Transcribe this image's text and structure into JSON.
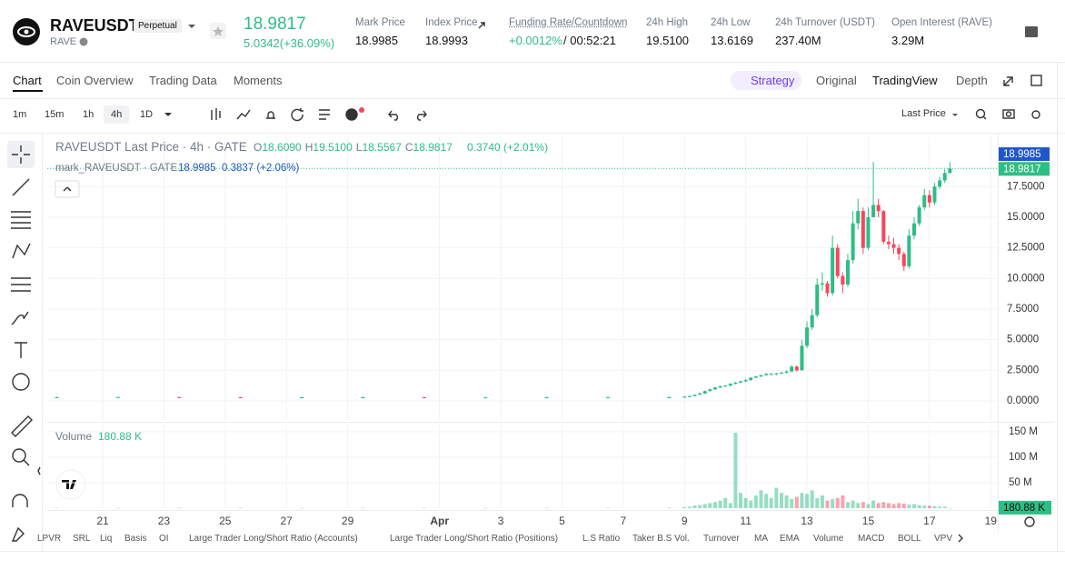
{
  "header": {
    "symbol": "RAVEUSDT",
    "badge": "Perpetual",
    "base": "RAVE",
    "price": "18.9817",
    "change": "5.0342(+36.09%)",
    "stats": [
      {
        "label": "Mark Price",
        "value": "18.9985"
      },
      {
        "label": "Index Price",
        "value": "18.9993"
      },
      {
        "label": "Funding Rate/Countdown",
        "value": "+0.0012%",
        "value2": " / 00:52:21"
      },
      {
        "label": "24h High",
        "value": "19.5100"
      },
      {
        "label": "24h Low",
        "value": "13.6169"
      },
      {
        "label": "24h Turnover (USDT)",
        "value": "237.40M"
      },
      {
        "label": "Open Interest (RAVE)",
        "value": "3.29M"
      }
    ]
  },
  "tabs": [
    "Chart",
    "Coin Overview",
    "Trading Data",
    "Moments"
  ],
  "views": [
    "Strategy",
    "Original",
    "TradingView",
    "Depth"
  ],
  "intervals": [
    "1m",
    "15m",
    "1h",
    "4h",
    "1D"
  ],
  "price_type": "Last Price",
  "indicators": [
    "LPVR",
    "SRL",
    "Liq",
    "Basis",
    "OI",
    "Large Trader Long/Short Ratio (Accounts)",
    "Large Trader Long/Short Ratio (Positions)",
    "L.S Ratio",
    "Taker B.S Vol.",
    "Turnover",
    "MA",
    "EMA",
    "Volume",
    "MACD",
    "BOLL",
    "VPV"
  ],
  "chart_data": {
    "type": "candlestick",
    "legend": {
      "title": "RAVEUSDT Last Price · 4h · GATE",
      "ohlc": [
        "O",
        "18.6090",
        "H",
        "19.5100",
        "L",
        "18.5567",
        "C",
        "18.9817"
      ],
      "change": "0.3740 (+2.01%)",
      "mark_title": "mark_RAVEUSDT · GATE",
      "mark_value": "18.9985",
      "mark_change": "0.3837 (+2.06%)",
      "volume_title": "Volume"
    },
    "x": [
      19.5,
      21.5,
      23.5,
      25.5,
      27.5,
      29.5,
      31.5,
      33.5,
      35.5,
      37.5,
      39.5,
      40,
      40.167,
      40.333,
      40.5,
      40.667,
      40.833,
      41,
      41.167,
      41.333,
      41.5,
      41.667,
      41.833,
      42,
      42.167,
      42.333,
      42.5,
      42.667,
      42.833,
      43,
      43.167,
      43.333,
      43.5,
      43.667,
      43.833,
      44,
      44.167,
      44.333,
      44.5,
      44.667,
      44.833,
      45,
      45.167,
      45.333,
      45.5,
      45.667,
      45.833,
      46,
      46.167,
      46.333,
      46.5,
      46.667,
      46.833,
      47,
      47.167,
      47.333,
      47.5,
      47.667,
      47.833,
      48,
      48.167,
      48.333,
      48.5,
      48.667
    ],
    "open": [
      0.3,
      0.3,
      0.31,
      0.3,
      0.29,
      0.3,
      0.3,
      0.28,
      0.29,
      0.3,
      0.3,
      0.3,
      0.35,
      0.4,
      0.5,
      0.6,
      0.8,
      0.95,
      1.1,
      1.2,
      1.25,
      1.4,
      1.5,
      1.6,
      1.7,
      1.9,
      2.0,
      2.1,
      2.2,
      2.2,
      2.25,
      2.3,
      2.4,
      2.8,
      2.5,
      4.5,
      6.0,
      7.0,
      9.5,
      9.6,
      8.8,
      12.5,
      10.2,
      9.5,
      11.5,
      14.5,
      15.5,
      12.5,
      15.0,
      16.0,
      15.5,
      13.0,
      12.8,
      12.5,
      12.0,
      11.0,
      13.5,
      14.5,
      15.8,
      16.8,
      16.2,
      17.5,
      18.0,
      18.609
    ],
    "high": [
      0.35,
      0.36,
      0.35,
      0.34,
      0.34,
      0.35,
      0.34,
      0.33,
      0.34,
      0.35,
      0.36,
      0.4,
      0.45,
      0.55,
      0.7,
      0.85,
      1.0,
      1.15,
      1.25,
      1.3,
      1.45,
      1.55,
      1.65,
      1.8,
      1.95,
      2.05,
      2.15,
      2.3,
      2.3,
      2.3,
      2.4,
      2.5,
      2.9,
      2.9,
      5.0,
      6.5,
      7.5,
      10.0,
      10.5,
      9.8,
      13.5,
      12.8,
      10.5,
      12.0,
      15.5,
      16.5,
      15.8,
      15.8,
      19.5,
      16.5,
      15.6,
      13.5,
      13.3,
      12.8,
      12.2,
      14.0,
      15.0,
      16.0,
      17.3,
      17.2,
      17.8,
      18.3,
      18.9,
      19.51
    ],
    "low": [
      0.26,
      0.25,
      0.26,
      0.25,
      0.24,
      0.25,
      0.26,
      0.24,
      0.25,
      0.26,
      0.27,
      0.25,
      0.3,
      0.38,
      0.48,
      0.58,
      0.78,
      0.9,
      1.05,
      1.15,
      1.2,
      1.35,
      1.45,
      1.55,
      1.65,
      1.85,
      1.95,
      2.05,
      2.1,
      2.1,
      2.2,
      2.25,
      2.35,
      2.4,
      2.5,
      4.3,
      5.8,
      6.8,
      9.0,
      8.5,
      8.6,
      10.0,
      8.8,
      9.3,
      11.2,
      14.0,
      12.0,
      12.3,
      15.0,
      15.0,
      12.8,
      12.4,
      12.0,
      11.5,
      10.6,
      10.8,
      13.2,
      14.3,
      15.6,
      15.8,
      16.0,
      17.3,
      17.8,
      18.5567
    ],
    "close": [
      0.3,
      0.31,
      0.3,
      0.29,
      0.3,
      0.3,
      0.28,
      0.29,
      0.3,
      0.3,
      0.3,
      0.35,
      0.4,
      0.5,
      0.6,
      0.8,
      0.95,
      1.1,
      1.2,
      1.25,
      1.4,
      1.5,
      1.6,
      1.7,
      1.9,
      2.0,
      2.1,
      2.2,
      2.2,
      2.25,
      2.3,
      2.4,
      2.8,
      2.5,
      4.5,
      6.0,
      7.0,
      9.5,
      9.6,
      8.8,
      12.5,
      10.2,
      9.5,
      11.5,
      14.5,
      15.5,
      12.5,
      15.0,
      16.0,
      15.5,
      13.0,
      12.8,
      12.5,
      12.0,
      11.0,
      13.5,
      14.5,
      15.8,
      16.8,
      16.2,
      17.5,
      18.0,
      18.61,
      18.9817
    ],
    "volume": [
      0.5,
      0.4,
      0.5,
      0.6,
      0.4,
      0.5,
      0.5,
      0.4,
      0.5,
      0.6,
      1,
      2,
      3,
      5,
      6,
      8,
      10,
      12,
      15,
      20,
      10,
      148,
      30,
      20,
      15,
      25,
      35,
      28,
      20,
      40,
      30,
      25,
      18,
      22,
      30,
      28,
      35,
      20,
      25,
      15,
      18,
      20,
      25,
      12,
      15,
      10,
      12,
      8,
      15,
      10,
      12,
      10,
      8,
      10,
      9,
      7,
      8,
      6,
      5,
      5,
      4,
      3,
      3,
      0.18088
    ],
    "up_color": "#2ebd85",
    "down_color": "#f6465d",
    "grid": true,
    "xlim": [
      19.19,
      50.23
    ],
    "xticks": [
      21,
      23,
      25,
      27,
      29,
      {
        "value": 32,
        "label": "Apr"
      },
      {
        "value": 34,
        "label": "3"
      },
      {
        "value": 36,
        "label": "5"
      },
      {
        "value": 38,
        "label": "7"
      },
      {
        "value": 40,
        "label": "9"
      },
      {
        "value": 42,
        "label": "11"
      },
      {
        "value": 44,
        "label": "13"
      },
      {
        "value": 46,
        "label": "15"
      },
      {
        "value": 48,
        "label": "17"
      },
      {
        "value": 50,
        "label": "19"
      }
    ],
    "ylim": [
      -1.63,
      21.6
    ],
    "yticks": [
      {
        "value": 0,
        "label": "0.0000"
      },
      {
        "value": 2.5,
        "label": "2.5000"
      },
      {
        "value": 5,
        "label": "5.0000"
      },
      {
        "value": 7.5,
        "label": "7.5000"
      },
      {
        "value": 10,
        "label": "10.0000"
      },
      {
        "value": 12.5,
        "label": "12.5000"
      },
      {
        "value": 15,
        "label": "15.0000"
      },
      {
        "value": 17.5,
        "label": "17.5000"
      }
    ],
    "volume_lim": [
      0,
      164
    ],
    "volume_ticks": [
      {
        "value": 50,
        "label": "50 M"
      },
      {
        "value": 100,
        "label": "100 M"
      },
      {
        "value": 150,
        "label": "150 M"
      }
    ],
    "last_price": 18.9817,
    "mark_price": 18.9985,
    "volume_last": {
      "value": 0.18088,
      "label": "180.88 K"
    }
  }
}
